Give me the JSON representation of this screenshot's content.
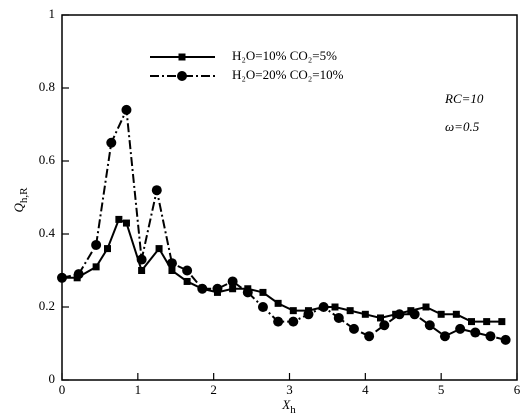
{
  "chart_data": {
    "type": "line",
    "xlabel": {
      "main": "X",
      "sub": "h"
    },
    "ylabel": {
      "main": "Q",
      "sub": "h,R"
    },
    "annotations": [
      "RC=10",
      "ω=0.5"
    ],
    "xlim": [
      0,
      6
    ],
    "ylim": [
      0,
      1
    ],
    "xticks": [
      0,
      1,
      2,
      3,
      4,
      5,
      6
    ],
    "yticks": [
      0,
      0.2,
      0.4,
      0.6,
      0.8,
      1
    ],
    "series": [
      {
        "name": "H₂O=10%    CO₂=5%",
        "color": "#000000",
        "marker": "square",
        "dash": "solid",
        "x": [
          0,
          0.2,
          0.45,
          0.6,
          0.75,
          0.85,
          1.05,
          1.28,
          1.45,
          1.65,
          1.85,
          2.05,
          2.25,
          2.45,
          2.65,
          2.85,
          3.05,
          3.25,
          3.45,
          3.6,
          3.8,
          4.0,
          4.2,
          4.4,
          4.6,
          4.8,
          5.0,
          5.2,
          5.4,
          5.6,
          5.8
        ],
        "values": [
          0.28,
          0.28,
          0.31,
          0.36,
          0.44,
          0.43,
          0.3,
          0.36,
          0.3,
          0.27,
          0.25,
          0.24,
          0.25,
          0.25,
          0.24,
          0.21,
          0.19,
          0.19,
          0.2,
          0.2,
          0.19,
          0.18,
          0.17,
          0.18,
          0.19,
          0.2,
          0.18,
          0.18,
          0.16,
          0.16,
          0.16
        ]
      },
      {
        "name": "H₂O=20%    CO₂=10%",
        "color": "#000000",
        "marker": "circle",
        "dash": "dashdot",
        "x": [
          0,
          0.22,
          0.45,
          0.65,
          0.85,
          1.05,
          1.25,
          1.45,
          1.65,
          1.85,
          2.05,
          2.25,
          2.45,
          2.65,
          2.85,
          3.05,
          3.25,
          3.45,
          3.65,
          3.85,
          4.05,
          4.25,
          4.45,
          4.65,
          4.85,
          5.05,
          5.25,
          5.45,
          5.65,
          5.85
        ],
        "values": [
          0.28,
          0.29,
          0.37,
          0.65,
          0.74,
          0.33,
          0.52,
          0.32,
          0.3,
          0.25,
          0.25,
          0.27,
          0.24,
          0.2,
          0.16,
          0.16,
          0.18,
          0.2,
          0.17,
          0.14,
          0.12,
          0.15,
          0.18,
          0.18,
          0.15,
          0.12,
          0.14,
          0.13,
          0.12,
          0.11
        ]
      }
    ]
  }
}
